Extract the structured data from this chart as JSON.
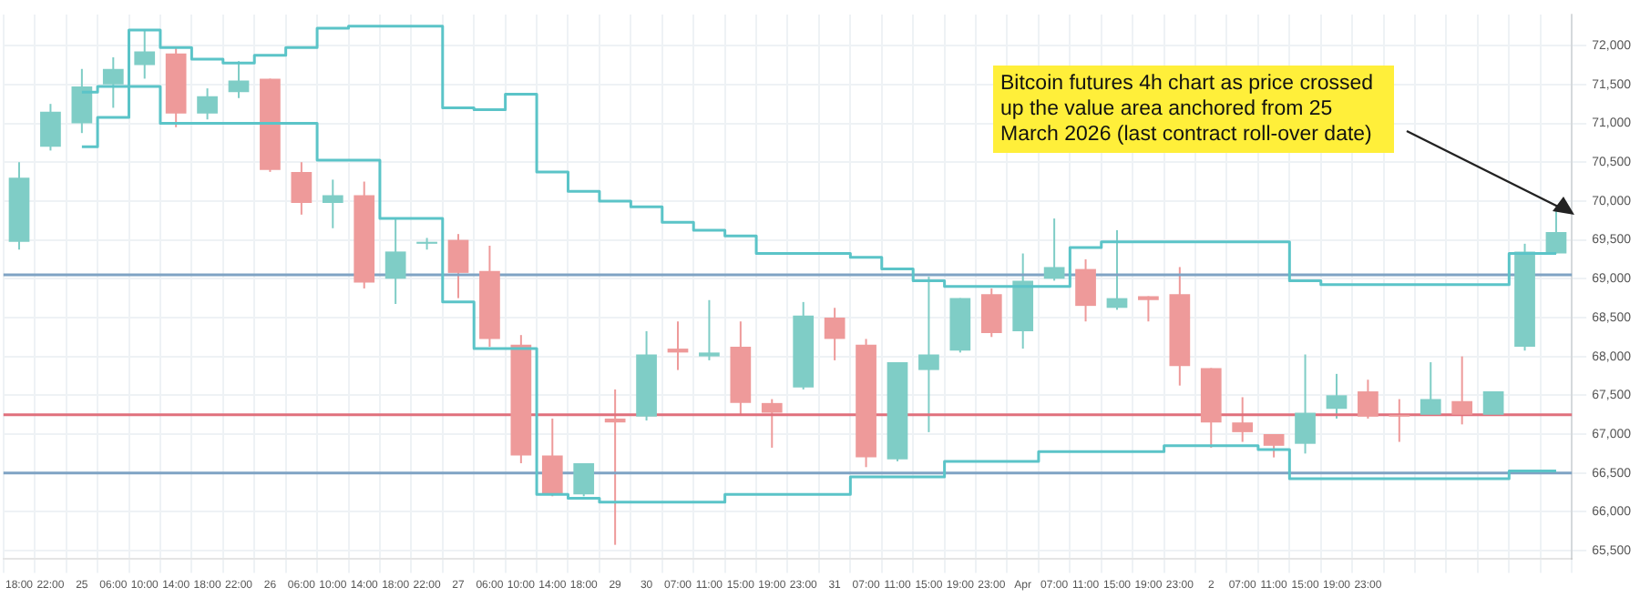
{
  "chart_data": {
    "type": "candlestick",
    "categories": [
      "18:00",
      "22:00",
      "25",
      "06:00",
      "10:00",
      "14:00",
      "18:00",
      "22:00",
      "26",
      "06:00",
      "10:00",
      "14:00",
      "18:00",
      "22:00",
      "27",
      "06:00",
      "10:00",
      "14:00",
      "18:00",
      "29",
      "30",
      "07:00",
      "11:00",
      "15:00",
      "19:00",
      "23:00",
      "31",
      "07:00",
      "11:00",
      "15:00",
      "19:00",
      "23:00",
      "Apr",
      "07:00",
      "11:00",
      "15:00",
      "19:00",
      "23:00",
      "2",
      "07:00",
      "11:00",
      "15:00",
      "19:00",
      "23:00",
      null,
      null,
      null,
      null,
      null,
      null
    ],
    "ohlc": [
      [
        69475,
        70500,
        69375,
        70300
      ],
      [
        70700,
        71250,
        70650,
        71150
      ],
      [
        71000,
        71700,
        70875,
        71475
      ],
      [
        71500,
        71850,
        71200,
        71700
      ],
      [
        71750,
        72200,
        71575,
        71925
      ],
      [
        71900,
        71975,
        70950,
        71125
      ],
      [
        71125,
        71450,
        71050,
        71350
      ],
      [
        71400,
        71800,
        71325,
        71550
      ],
      [
        71575,
        71575,
        70375,
        70400
      ],
      [
        70375,
        70500,
        69825,
        69975
      ],
      [
        69975,
        70275,
        69650,
        70075
      ],
      [
        70075,
        70250,
        68875,
        68950
      ],
      [
        69000,
        69775,
        68675,
        69350
      ],
      [
        69450,
        69525,
        69375,
        69475
      ],
      [
        69500,
        69575,
        68750,
        69075
      ],
      [
        69100,
        69425,
        68125,
        68225
      ],
      [
        68150,
        68275,
        66625,
        66725
      ],
      [
        66725,
        67200,
        66200,
        66225
      ],
      [
        66225,
        66625,
        66200,
        66625
      ],
      [
        67200,
        67575,
        65575,
        67150
      ],
      [
        67225,
        68325,
        67175,
        68025
      ],
      [
        68100,
        68450,
        67825,
        68050
      ],
      [
        68000,
        68725,
        67950,
        68050
      ],
      [
        68125,
        68450,
        67250,
        67400
      ],
      [
        67400,
        67450,
        66825,
        67275
      ],
      [
        67600,
        68700,
        67575,
        68525
      ],
      [
        68500,
        68625,
        67950,
        68225
      ],
      [
        68150,
        68225,
        66575,
        66700
      ],
      [
        66675,
        67925,
        66650,
        67925
      ],
      [
        67825,
        69025,
        67025,
        68025
      ],
      [
        68075,
        68750,
        68050,
        68750
      ],
      [
        68800,
        68875,
        68250,
        68300
      ],
      [
        68325,
        69325,
        68100,
        68975
      ],
      [
        69000,
        69775,
        68975,
        69150
      ],
      [
        69125,
        69250,
        68450,
        68650
      ],
      [
        68625,
        69625,
        68600,
        68750
      ],
      [
        68775,
        68775,
        68450,
        68725
      ],
      [
        68800,
        69150,
        67625,
        67875
      ],
      [
        67850,
        67850,
        66825,
        67150
      ],
      [
        67150,
        67475,
        66900,
        67025
      ],
      [
        67000,
        67000,
        66700,
        66850
      ],
      [
        66875,
        68025,
        66750,
        67275
      ],
      [
        67325,
        67775,
        67200,
        67500
      ],
      [
        67550,
        67700,
        67200,
        67225
      ],
      [
        67250,
        67450,
        66900,
        67225
      ],
      [
        67250,
        67925,
        67250,
        67450
      ],
      [
        67425,
        68000,
        67125,
        67250
      ],
      [
        67250,
        67550,
        67250,
        67550
      ],
      [
        68125,
        69450,
        68075,
        69350
      ],
      [
        69325,
        69900,
        69325,
        69600
      ]
    ],
    "series": [
      {
        "type": "step",
        "color": "#5bc4c8",
        "values": [
          null,
          null,
          71400,
          71475,
          72200,
          71975,
          71825,
          71775,
          71875,
          71975,
          72225,
          72250,
          72250,
          72250,
          71200,
          71175,
          71375,
          70375,
          70125,
          70000,
          69925,
          69725,
          69625,
          69550,
          69325,
          69325,
          69325,
          69275,
          69125,
          68975,
          68900,
          68900,
          68900,
          68900,
          69400,
          69475,
          69475,
          69475,
          69475,
          69475,
          69475,
          68975,
          68925,
          68925,
          68925,
          68925,
          68925,
          68925,
          69325,
          69325
        ]
      },
      {
        "type": "step",
        "color": "#5bc4c8",
        "values": [
          null,
          null,
          70700,
          71075,
          71475,
          71000,
          71000,
          71000,
          71000,
          71000,
          70525,
          70525,
          69775,
          69775,
          68700,
          68100,
          68100,
          66225,
          66175,
          66125,
          66125,
          66125,
          66125,
          66225,
          66225,
          66225,
          66225,
          66450,
          66450,
          66450,
          66650,
          66650,
          66650,
          66775,
          66775,
          66775,
          66775,
          66850,
          66850,
          66850,
          66800,
          66425,
          66425,
          66425,
          66425,
          66425,
          66425,
          66425,
          66525,
          66525
        ]
      }
    ],
    "colors": [
      "#7fcdc6",
      "#7fcdc6",
      "#7fcdc6",
      "#7fcdc6",
      "#7fcdc6",
      "#ee9a9a",
      "#7fcdc6",
      "#7fcdc6",
      "#ee9a9a",
      "#ee9a9a",
      "#7fcdc6",
      "#ee9a9a",
      "#7fcdc6",
      "#7fcdc6",
      "#ee9a9a",
      "#ee9a9a",
      "#ee9a9a",
      "#ee9a9a",
      "#7fcdc6",
      "#ee9a9a",
      "#7fcdc6",
      "#ee9a9a",
      "#7fcdc6",
      "#ee9a9a",
      "#ee9a9a",
      "#7fcdc6",
      "#ee9a9a",
      "#ee9a9a",
      "#7fcdc6",
      "#7fcdc6",
      "#7fcdc6",
      "#ee9a9a",
      "#7fcdc6",
      "#7fcdc6",
      "#ee9a9a",
      "#7fcdc6",
      "#ee9a9a",
      "#ee9a9a",
      "#ee9a9a",
      "#ee9a9a",
      "#ee9a9a",
      "#7fcdc6",
      "#7fcdc6",
      "#ee9a9a",
      "#ee9a9a",
      "#7fcdc6",
      "#ee9a9a",
      "#7fcdc6",
      "#7fcdc6",
      "#7fcdc6"
    ],
    "ylim": [
      65400,
      72400
    ],
    "yticks": [
      {
        "value": 65500,
        "label": "65,500"
      },
      {
        "value": 66000,
        "label": "66,000"
      },
      {
        "value": 66500,
        "label": "66,500"
      },
      {
        "value": 67000,
        "label": "67,000"
      },
      {
        "value": 67500,
        "label": "67,500"
      },
      {
        "value": 68000,
        "label": "68,000"
      },
      {
        "value": 68500,
        "label": "68,500"
      },
      {
        "value": 69000,
        "label": "69,000"
      },
      {
        "value": 69500,
        "label": "69,500"
      },
      {
        "value": 70000,
        "label": "70,000"
      },
      {
        "value": 70500,
        "label": "70,500"
      },
      {
        "value": 71000,
        "label": "71,000"
      },
      {
        "value": 71500,
        "label": "71,500"
      },
      {
        "value": 72000,
        "label": "72,000"
      }
    ],
    "ref_lines": [
      {
        "axis": "y",
        "value": 69050,
        "color": "#7fa3c4"
      },
      {
        "axis": "y",
        "value": 67250,
        "color": "#e0707c"
      },
      {
        "axis": "y",
        "value": 66500,
        "color": "#7fa3c4"
      }
    ],
    "annotations": [
      "Bitcoin futures 4h chart as price crossed up the value area anchored from 25 March 2026 (last contract roll-over date)"
    ],
    "grid": true,
    "legend": false
  }
}
